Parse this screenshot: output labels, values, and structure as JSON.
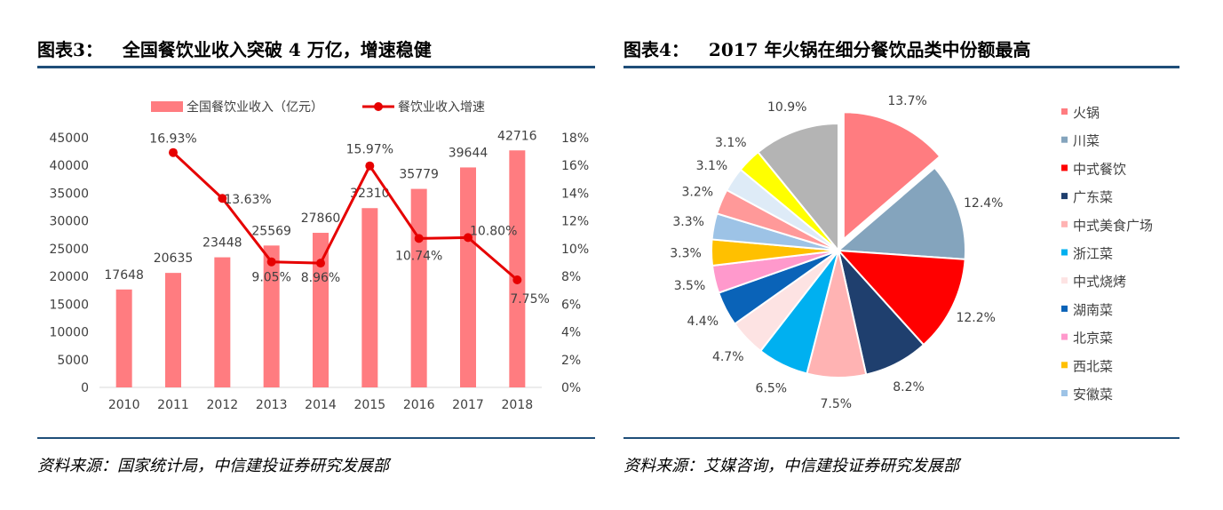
{
  "left_panel": {
    "title_prefix": "图表3：",
    "title_text": "全国餐饮业收入突破 4 万亿，增速稳健",
    "source": "资料来源：国家统计局，中信建投证券研究发展部"
  },
  "right_panel": {
    "title_prefix": "图表4：",
    "title_text": "2017 年火锅在细分餐饮品类中份额最高",
    "source": "资料来源：艾媒咨询，中信建投证券研究发展部"
  },
  "colors": {
    "rule": "#1f4e79",
    "bar": "#ff7c80",
    "line": "#e60000"
  },
  "chart_data": [
    {
      "type": "bar",
      "categories": [
        "2010",
        "2011",
        "2012",
        "2013",
        "2014",
        "2015",
        "2016",
        "2017",
        "2018"
      ],
      "series": [
        {
          "name": "全国餐饮业收入（亿元）",
          "type": "bar",
          "axis": "left",
          "values": [
            17648,
            20635,
            23448,
            25569,
            27860,
            32310,
            35779,
            39644,
            42716
          ],
          "labels": [
            "17648",
            "20635",
            "23448",
            "25569",
            "27860",
            "32310",
            "35779",
            "39644",
            "42716"
          ]
        },
        {
          "name": "餐饮业收入增速",
          "type": "line",
          "axis": "right",
          "x": [
            "2011",
            "2012",
            "2013",
            "2014",
            "2015",
            "2016",
            "2017",
            "2018"
          ],
          "values": [
            16.93,
            13.63,
            9.05,
            8.96,
            15.97,
            10.74,
            10.8,
            7.75
          ],
          "labels": [
            "16.93%",
            "13.63%",
            "9.05%",
            "8.96%",
            "15.97%",
            "10.74%",
            "10.80%",
            "7.75%"
          ]
        }
      ],
      "ylim": [
        0,
        45000
      ],
      "yticks": [
        "0",
        "5000",
        "10000",
        "15000",
        "20000",
        "25000",
        "30000",
        "35000",
        "40000",
        "45000"
      ],
      "y2lim": [
        0,
        18
      ],
      "y2ticks": [
        "0%",
        "2%",
        "4%",
        "6%",
        "8%",
        "10%",
        "12%",
        "14%",
        "16%",
        "18%"
      ],
      "legend": "top",
      "grid": false
    },
    {
      "type": "pie",
      "legend": "right",
      "slices": [
        {
          "name": "火锅",
          "value": 13.7,
          "label": "13.7%",
          "color": "#ff7c80",
          "exploded": true
        },
        {
          "name": "川菜",
          "value": 12.4,
          "label": "12.4%",
          "color": "#84a4bd"
        },
        {
          "name": "中式餐饮",
          "value": 12.2,
          "label": "12.2%",
          "color": "#ff0000"
        },
        {
          "name": "广东菜",
          "value": 8.2,
          "label": "8.2%",
          "color": "#1f3f6e"
        },
        {
          "name": "中式美食广场",
          "value": 7.5,
          "label": "7.5%",
          "color": "#ffb3b3"
        },
        {
          "name": "浙江菜",
          "value": 6.5,
          "label": "6.5%",
          "color": "#00b0f0"
        },
        {
          "name": "中式烧烤",
          "value": 4.7,
          "label": "4.7%",
          "color": "#fde3e3"
        },
        {
          "name": "湖南菜",
          "value": 4.4,
          "label": "4.4%",
          "color": "#0a63b8"
        },
        {
          "name": "北京菜",
          "value": 3.5,
          "label": "3.5%",
          "color": "#ff99cc"
        },
        {
          "name": "西北菜",
          "value": 3.3,
          "label": "3.3%",
          "color": "#ffc000"
        },
        {
          "name": "安徽菜",
          "value": 3.3,
          "label": "3.3%",
          "color": "#9dc3e6"
        },
        {
          "name": "",
          "value": 3.2,
          "label": "3.2%",
          "color": "#ff9999"
        },
        {
          "name": "",
          "value": 3.1,
          "label": "3.1%",
          "color": "#deebf7"
        },
        {
          "name": "",
          "value": 3.1,
          "label": "3.1%",
          "color": "#ffff00"
        },
        {
          "name": "",
          "value": 10.9,
          "label": "10.9%",
          "color": "#b4b4b4"
        }
      ]
    }
  ]
}
